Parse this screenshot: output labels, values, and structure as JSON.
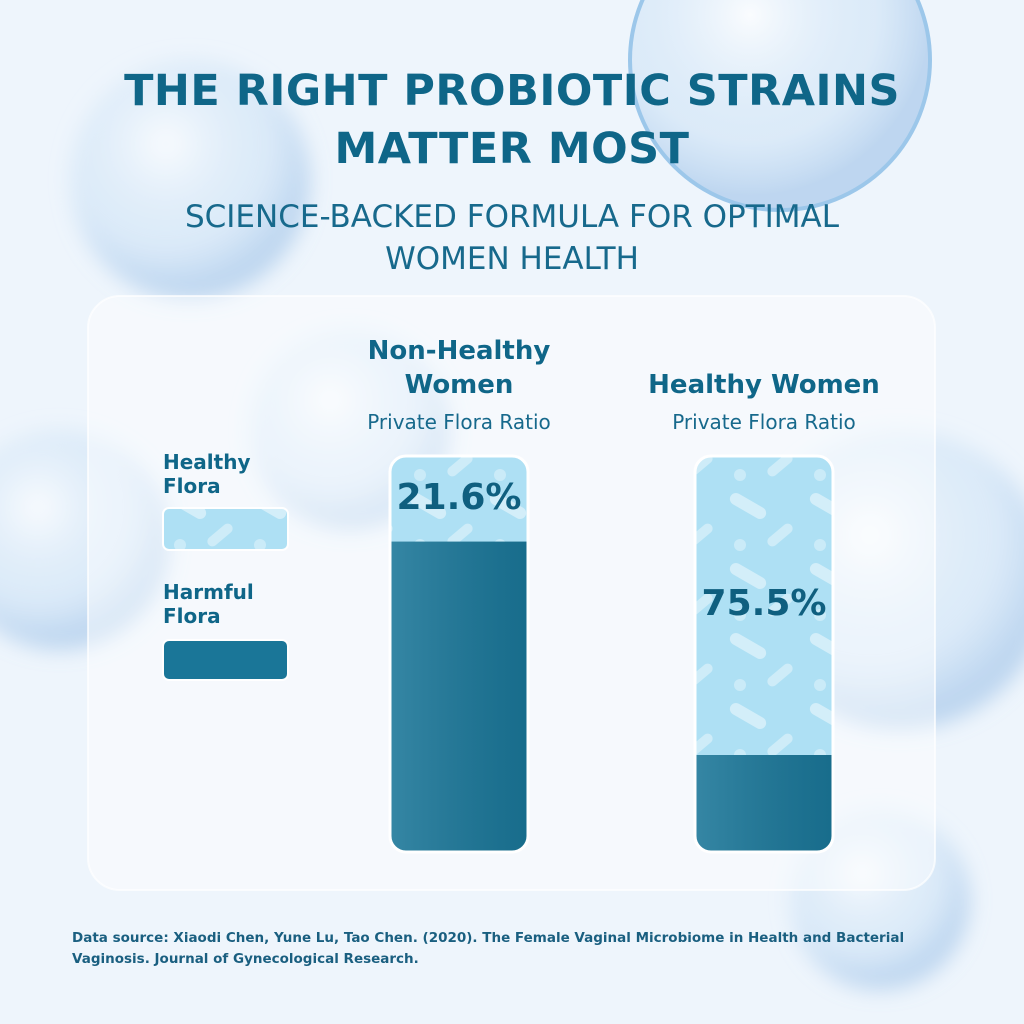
{
  "chart_data": {
    "type": "stacked-bar",
    "title": "THE RIGHT PROBIOTIC STRAINS MATTER MOST",
    "subtitle": "SCIENCE-BACKED FORMULA FOR OPTIMAL WOMEN HEALTH",
    "categories": [
      "Non-Healthy Women",
      "Healthy Women"
    ],
    "category_subtitle": "Private Flora Ratio",
    "series": [
      {
        "name": "Healthy Flora",
        "color": "#aee0f4",
        "values": [
          21.6,
          75.5
        ],
        "value_labels": [
          "21.6%",
          "75.5%"
        ]
      },
      {
        "name": "Harmful Flora",
        "color": "#1a7698",
        "values": [
          78.4,
          24.5
        ]
      }
    ],
    "ylim": [
      0,
      100
    ],
    "source": "Data source: Xiaodi Chen, Yune Lu, Tao Chen. (2020). The Female Vaginal Microbiome in Health and Bacterial Vaginosis. Journal of Gynecological Research."
  }
}
